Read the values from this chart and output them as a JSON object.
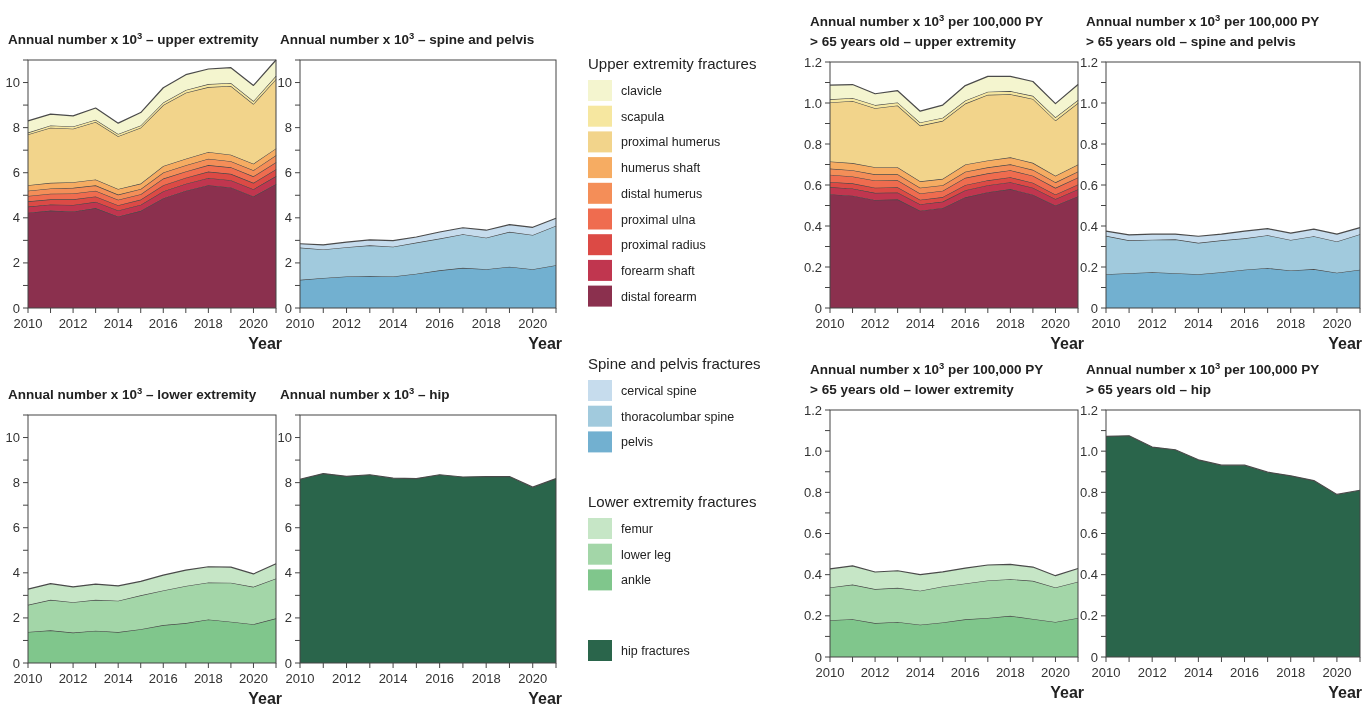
{
  "chart_data": [
    {
      "type": "area",
      "stacked": true,
      "title": "Annual number x 10$^{3}$ – upper extremity",
      "xlabel": "Year",
      "legend": "right",
      "legend_title": "Upper extremity fractures",
      "x": [
        2010,
        2011,
        2012,
        2013,
        2014,
        2015,
        2016,
        2017,
        2018,
        2019,
        2020,
        2021
      ],
      "xlim": [
        2010,
        2021
      ],
      "xticks": [
        2010,
        {
          "value": 2011,
          "label": null
        },
        2012,
        {
          "value": 2013,
          "label": null
        },
        2014,
        {
          "value": 2015,
          "label": null
        },
        2016,
        {
          "value": 2017,
          "label": null
        },
        2018,
        {
          "value": 2019,
          "label": null
        },
        2020,
        {
          "value": 2021,
          "label": null
        }
      ],
      "ylim": [
        0,
        11
      ],
      "yticks": [
        0,
        {
          "value": 1,
          "label": null
        },
        2,
        {
          "value": 3,
          "label": null
        },
        4,
        {
          "value": 5,
          "label": null
        },
        6,
        {
          "value": 7,
          "label": null
        },
        8,
        {
          "value": 9,
          "label": null
        },
        10,
        {
          "value": 11,
          "label": null
        }
      ],
      "series": [
        {
          "name": "distal forearm",
          "color": "#8b304e",
          "values": [
            4.23,
            4.32,
            4.28,
            4.43,
            4.06,
            4.31,
            4.87,
            5.2,
            5.45,
            5.35,
            4.95,
            5.5
          ]
        },
        {
          "name": "forearm shaft",
          "color": "#c0364f",
          "values": [
            0.27,
            0.27,
            0.29,
            0.28,
            0.27,
            0.27,
            0.31,
            0.31,
            0.32,
            0.32,
            0.32,
            0.35
          ]
        },
        {
          "name": "proximal radius",
          "color": "#dc4a45",
          "values": [
            0.23,
            0.23,
            0.25,
            0.24,
            0.23,
            0.23,
            0.27,
            0.27,
            0.28,
            0.28,
            0.28,
            0.3
          ]
        },
        {
          "name": "proximal ulna",
          "color": "#ef6c4f",
          "values": [
            0.24,
            0.25,
            0.26,
            0.25,
            0.24,
            0.24,
            0.29,
            0.28,
            0.29,
            0.29,
            0.29,
            0.32
          ]
        },
        {
          "name": "distal humerus",
          "color": "#f48e58",
          "values": [
            0.23,
            0.23,
            0.25,
            0.24,
            0.23,
            0.23,
            0.27,
            0.27,
            0.28,
            0.27,
            0.27,
            0.3
          ]
        },
        {
          "name": "humerus shaft",
          "color": "#f6ac62",
          "values": [
            0.25,
            0.25,
            0.25,
            0.26,
            0.25,
            0.24,
            0.29,
            0.29,
            0.3,
            0.29,
            0.29,
            0.31
          ]
        },
        {
          "name": "proximal humerus",
          "color": "#f2d48b",
          "values": [
            2.25,
            2.45,
            2.37,
            2.55,
            2.34,
            2.48,
            2.7,
            2.93,
            2.88,
            3.05,
            2.65,
            3.07
          ]
        },
        {
          "name": "scapula",
          "color": "#f6e7a0",
          "values": [
            0.08,
            0.1,
            0.1,
            0.1,
            0.1,
            0.1,
            0.12,
            0.12,
            0.13,
            0.13,
            0.13,
            0.15
          ]
        },
        {
          "name": "clavicle",
          "color": "#f4f5cf",
          "values": [
            0.52,
            0.5,
            0.47,
            0.52,
            0.48,
            0.57,
            0.65,
            0.68,
            0.67,
            0.68,
            0.69,
            0.7
          ]
        }
      ]
    },
    {
      "type": "area",
      "stacked": true,
      "title": "Annual number x 10$^{3}$ – spine and pelvis",
      "xlabel": "Year",
      "legend": "right",
      "legend_title": "Spine and pelvis fractures",
      "x": [
        2010,
        2011,
        2012,
        2013,
        2014,
        2015,
        2016,
        2017,
        2018,
        2019,
        2020,
        2021
      ],
      "xlim": [
        2010,
        2021
      ],
      "xticks": [
        2010,
        {
          "value": 2011,
          "label": null
        },
        2012,
        {
          "value": 2013,
          "label": null
        },
        2014,
        {
          "value": 2015,
          "label": null
        },
        2016,
        {
          "value": 2017,
          "label": null
        },
        2018,
        {
          "value": 2019,
          "label": null
        },
        2020,
        {
          "value": 2021,
          "label": null
        }
      ],
      "ylim": [
        0,
        11
      ],
      "yticks": [
        0,
        {
          "value": 1,
          "label": null
        },
        2,
        {
          "value": 3,
          "label": null
        },
        4,
        {
          "value": 5,
          "label": null
        },
        6,
        {
          "value": 7,
          "label": null
        },
        8,
        {
          "value": 9,
          "label": null
        },
        10,
        {
          "value": 11,
          "label": null
        }
      ],
      "series": [
        {
          "name": "pelvis",
          "color": "#72b0d0",
          "values": [
            1.25,
            1.33,
            1.4,
            1.42,
            1.4,
            1.52,
            1.67,
            1.78,
            1.72,
            1.83,
            1.72,
            1.9
          ]
        },
        {
          "name": "thoracolumbar spine",
          "color": "#a1cadd",
          "values": [
            1.43,
            1.27,
            1.3,
            1.36,
            1.32,
            1.38,
            1.41,
            1.49,
            1.4,
            1.55,
            1.52,
            1.75
          ]
        },
        {
          "name": "cervical spine",
          "color": "#c6dced",
          "values": [
            0.17,
            0.2,
            0.22,
            0.24,
            0.27,
            0.25,
            0.29,
            0.29,
            0.33,
            0.32,
            0.34,
            0.33
          ]
        }
      ]
    },
    {
      "type": "area",
      "stacked": true,
      "title": "Annual number x 10$^{3}$ per 100,000 PY\n> 65 years old – upper extremity",
      "xlabel": "Year",
      "x": [
        2010,
        2011,
        2012,
        2013,
        2014,
        2015,
        2016,
        2017,
        2018,
        2019,
        2020,
        2021
      ],
      "xlim": [
        2010,
        2021
      ],
      "xticks": [
        2010,
        {
          "value": 2011,
          "label": null
        },
        2012,
        {
          "value": 2013,
          "label": null
        },
        2014,
        {
          "value": 2015,
          "label": null
        },
        2016,
        {
          "value": 2017,
          "label": null
        },
        2018,
        {
          "value": 2019,
          "label": null
        },
        2020,
        {
          "value": 2021,
          "label": null
        }
      ],
      "ylim": [
        0,
        1.2
      ],
      "yticks": [
        0,
        {
          "value": 0.1,
          "label": null
        },
        0.2,
        {
          "value": 0.3,
          "label": null
        },
        0.4,
        {
          "value": 0.5,
          "label": null
        },
        0.6,
        {
          "value": 0.7,
          "label": null
        },
        0.8,
        {
          "value": 0.9,
          "label": null
        },
        {
          "value": 1,
          "label": "1.0"
        },
        {
          "value": 1.1,
          "label": null
        },
        1.2
      ],
      "series": [
        {
          "color": "#8b304e",
          "values": [
            0.555,
            0.548,
            0.527,
            0.53,
            0.475,
            0.488,
            0.54,
            0.565,
            0.58,
            0.553,
            0.5,
            0.545
          ]
        },
        {
          "color": "#c0364f",
          "values": [
            0.035,
            0.035,
            0.035,
            0.034,
            0.031,
            0.031,
            0.035,
            0.034,
            0.034,
            0.034,
            0.032,
            0.034
          ]
        },
        {
          "color": "#dc4a45",
          "values": [
            0.025,
            0.025,
            0.025,
            0.025,
            0.022,
            0.022,
            0.025,
            0.024,
            0.024,
            0.024,
            0.022,
            0.024
          ]
        },
        {
          "color": "#ef6c4f",
          "values": [
            0.035,
            0.034,
            0.035,
            0.034,
            0.031,
            0.031,
            0.035,
            0.034,
            0.034,
            0.034,
            0.032,
            0.034
          ]
        },
        {
          "color": "#f48e58",
          "values": [
            0.03,
            0.03,
            0.03,
            0.03,
            0.028,
            0.027,
            0.03,
            0.029,
            0.029,
            0.029,
            0.027,
            0.029
          ]
        },
        {
          "color": "#f6ac62",
          "values": [
            0.035,
            0.035,
            0.035,
            0.034,
            0.031,
            0.031,
            0.035,
            0.034,
            0.034,
            0.034,
            0.032,
            0.034
          ]
        },
        {
          "color": "#f2d48b",
          "values": [
            0.288,
            0.303,
            0.288,
            0.301,
            0.272,
            0.283,
            0.297,
            0.32,
            0.308,
            0.312,
            0.27,
            0.3
          ]
        },
        {
          "color": "#f6e7a0",
          "values": [
            0.015,
            0.015,
            0.015,
            0.015,
            0.015,
            0.015,
            0.015,
            0.015,
            0.015,
            0.015,
            0.015,
            0.015
          ]
        },
        {
          "color": "#f4f5cf",
          "values": [
            0.069,
            0.065,
            0.055,
            0.057,
            0.055,
            0.062,
            0.073,
            0.075,
            0.072,
            0.07,
            0.067,
            0.075
          ]
        }
      ]
    },
    {
      "type": "area",
      "stacked": true,
      "title": "Annual number x 10$^{3}$ per 100,000 PY\n> 65 years old – spine and pelvis",
      "xlabel": "Year",
      "x": [
        2010,
        2011,
        2012,
        2013,
        2014,
        2015,
        2016,
        2017,
        2018,
        2019,
        2020,
        2021
      ],
      "xlim": [
        2010,
        2021
      ],
      "xticks": [
        2010,
        {
          "value": 2011,
          "label": null
        },
        2012,
        {
          "value": 2013,
          "label": null
        },
        2014,
        {
          "value": 2015,
          "label": null
        },
        2016,
        {
          "value": 2017,
          "label": null
        },
        2018,
        {
          "value": 2019,
          "label": null
        },
        2020,
        {
          "value": 2021,
          "label": null
        }
      ],
      "ylim": [
        0,
        1.2
      ],
      "yticks": [
        0,
        {
          "value": 0.1,
          "label": null
        },
        0.2,
        {
          "value": 0.3,
          "label": null
        },
        0.4,
        {
          "value": 0.5,
          "label": null
        },
        0.6,
        {
          "value": 0.7,
          "label": null
        },
        0.8,
        {
          "value": 0.9,
          "label": null
        },
        {
          "value": 1,
          "label": "1.0"
        },
        {
          "value": 1.1,
          "label": null
        },
        1.2
      ],
      "series": [
        {
          "color": "#72b0d0",
          "values": [
            0.165,
            0.17,
            0.175,
            0.17,
            0.165,
            0.175,
            0.187,
            0.195,
            0.183,
            0.19,
            0.172,
            0.187
          ]
        },
        {
          "color": "#a1cadd",
          "values": [
            0.187,
            0.16,
            0.158,
            0.165,
            0.153,
            0.155,
            0.153,
            0.16,
            0.149,
            0.16,
            0.153,
            0.173
          ]
        },
        {
          "color": "#c6dced",
          "values": [
            0.023,
            0.027,
            0.027,
            0.025,
            0.032,
            0.03,
            0.035,
            0.032,
            0.033,
            0.035,
            0.035,
            0.032
          ]
        }
      ]
    },
    {
      "type": "area",
      "stacked": true,
      "title": "Annual number x 10$^{3}$ – lower extremity",
      "xlabel": "Year",
      "legend": "right",
      "legend_title": "Lower extremity fractures",
      "x": [
        2010,
        2011,
        2012,
        2013,
        2014,
        2015,
        2016,
        2017,
        2018,
        2019,
        2020,
        2021
      ],
      "xlim": [
        2010,
        2021
      ],
      "xticks": [
        2010,
        {
          "value": 2011,
          "label": null
        },
        2012,
        {
          "value": 2013,
          "label": null
        },
        2014,
        {
          "value": 2015,
          "label": null
        },
        2016,
        {
          "value": 2017,
          "label": null
        },
        2018,
        {
          "value": 2019,
          "label": null
        },
        2020,
        {
          "value": 2021,
          "label": null
        }
      ],
      "ylim": [
        0,
        11
      ],
      "yticks": [
        0,
        {
          "value": 1,
          "label": null
        },
        2,
        {
          "value": 3,
          "label": null
        },
        4,
        {
          "value": 5,
          "label": null
        },
        6,
        {
          "value": 7,
          "label": null
        },
        8,
        {
          "value": 9,
          "label": null
        },
        10,
        {
          "value": 11,
          "label": null
        }
      ],
      "series": [
        {
          "name": "ankle",
          "color": "#80c68c",
          "values": [
            1.38,
            1.45,
            1.35,
            1.43,
            1.37,
            1.5,
            1.68,
            1.77,
            1.93,
            1.83,
            1.72,
            1.98
          ]
        },
        {
          "name": "lower leg",
          "color": "#a3d6a8",
          "values": [
            1.2,
            1.35,
            1.35,
            1.37,
            1.39,
            1.5,
            1.54,
            1.65,
            1.64,
            1.73,
            1.66,
            1.77
          ]
        },
        {
          "name": "femur",
          "color": "#c6e6c6",
          "values": [
            0.7,
            0.72,
            0.68,
            0.7,
            0.66,
            0.62,
            0.68,
            0.7,
            0.7,
            0.69,
            0.57,
            0.65
          ]
        }
      ]
    },
    {
      "type": "area",
      "stacked": true,
      "title": "Annual number x 10$^{3}$ – hip",
      "xlabel": "Year",
      "legend": "right",
      "x": [
        2010,
        2011,
        2012,
        2013,
        2014,
        2015,
        2016,
        2017,
        2018,
        2019,
        2020,
        2021
      ],
      "xlim": [
        2010,
        2021
      ],
      "xticks": [
        2010,
        {
          "value": 2011,
          "label": null
        },
        2012,
        {
          "value": 2013,
          "label": null
        },
        2014,
        {
          "value": 2015,
          "label": null
        },
        2016,
        {
          "value": 2017,
          "label": null
        },
        2018,
        {
          "value": 2019,
          "label": null
        },
        2020,
        {
          "value": 2021,
          "label": null
        }
      ],
      "ylim": [
        0,
        11
      ],
      "yticks": [
        0,
        {
          "value": 1,
          "label": null
        },
        2,
        {
          "value": 3,
          "label": null
        },
        4,
        {
          "value": 5,
          "label": null
        },
        6,
        {
          "value": 7,
          "label": null
        },
        8,
        {
          "value": 9,
          "label": null
        },
        10,
        {
          "value": 11,
          "label": null
        }
      ],
      "series": [
        {
          "name": "hip fractures",
          "color": "#2a654b",
          "values": [
            8.15,
            8.4,
            8.28,
            8.35,
            8.2,
            8.18,
            8.35,
            8.25,
            8.27,
            8.27,
            7.8,
            8.18
          ]
        }
      ]
    },
    {
      "type": "area",
      "stacked": true,
      "title": "Annual number x 10$^{3}$ per 100,000 PY\n> 65 years old – lower extremity",
      "xlabel": "Year",
      "x": [
        2010,
        2011,
        2012,
        2013,
        2014,
        2015,
        2016,
        2017,
        2018,
        2019,
        2020,
        2021
      ],
      "xlim": [
        2010,
        2021
      ],
      "xticks": [
        2010,
        {
          "value": 2011,
          "label": null
        },
        2012,
        {
          "value": 2013,
          "label": null
        },
        2014,
        {
          "value": 2015,
          "label": null
        },
        2016,
        {
          "value": 2017,
          "label": null
        },
        2018,
        {
          "value": 2019,
          "label": null
        },
        2020,
        {
          "value": 2021,
          "label": null
        }
      ],
      "ylim": [
        0,
        1.2
      ],
      "yticks": [
        0,
        {
          "value": 0.1,
          "label": null
        },
        0.2,
        {
          "value": 0.3,
          "label": null
        },
        0.4,
        {
          "value": 0.5,
          "label": null
        },
        0.6,
        {
          "value": 0.7,
          "label": null
        },
        0.8,
        {
          "value": 0.9,
          "label": null
        },
        {
          "value": 1,
          "label": "1.0"
        },
        {
          "value": 1.1,
          "label": null
        },
        1.2
      ],
      "series": [
        {
          "color": "#80c68c",
          "values": [
            0.179,
            0.184,
            0.165,
            0.17,
            0.157,
            0.168,
            0.183,
            0.19,
            0.2,
            0.185,
            0.17,
            0.19
          ]
        },
        {
          "color": "#a3d6a8",
          "values": [
            0.159,
            0.168,
            0.165,
            0.166,
            0.165,
            0.175,
            0.174,
            0.182,
            0.178,
            0.185,
            0.168,
            0.176
          ]
        },
        {
          "color": "#c6e6c6",
          "values": [
            0.09,
            0.091,
            0.083,
            0.083,
            0.078,
            0.071,
            0.075,
            0.075,
            0.072,
            0.067,
            0.057,
            0.064
          ]
        }
      ]
    },
    {
      "type": "area",
      "stacked": true,
      "title": "Annual number x 10$^{3}$ per 100,000 PY\n> 65 years old – hip",
      "xlabel": "Year",
      "x": [
        2010,
        2011,
        2012,
        2013,
        2014,
        2015,
        2016,
        2017,
        2018,
        2019,
        2020,
        2021
      ],
      "xlim": [
        2010,
        2021
      ],
      "xticks": [
        2010,
        {
          "value": 2011,
          "label": null
        },
        2012,
        {
          "value": 2013,
          "label": null
        },
        2014,
        {
          "value": 2015,
          "label": null
        },
        2016,
        {
          "value": 2017,
          "label": null
        },
        2018,
        {
          "value": 2019,
          "label": null
        },
        2020,
        {
          "value": 2021,
          "label": null
        }
      ],
      "ylim": [
        0,
        1.2
      ],
      "yticks": [
        0,
        {
          "value": 0.1,
          "label": null
        },
        0.2,
        {
          "value": 0.3,
          "label": null
        },
        0.4,
        {
          "value": 0.5,
          "label": null
        },
        0.6,
        {
          "value": 0.7,
          "label": null
        },
        0.8,
        {
          "value": 0.9,
          "label": null
        },
        {
          "value": 1,
          "label": "1.0"
        },
        {
          "value": 1.1,
          "label": null
        },
        1.2
      ],
      "series": [
        {
          "color": "#2a654b",
          "values": [
            1.072,
            1.075,
            1.02,
            1.007,
            0.958,
            0.932,
            0.932,
            0.898,
            0.88,
            0.857,
            0.79,
            0.81
          ]
        }
      ]
    }
  ]
}
